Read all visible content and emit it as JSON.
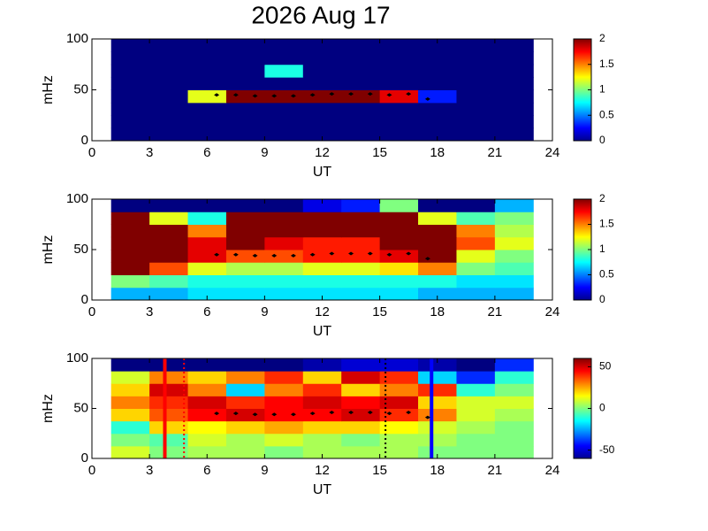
{
  "title": "2026 Aug 17",
  "chart_data": [
    {
      "type": "heatmap",
      "xlabel": "UT",
      "ylabel": "mHz",
      "xlim": [
        0,
        24
      ],
      "xticks": [
        0,
        3,
        6,
        9,
        12,
        15,
        18,
        21,
        24
      ],
      "ylim": [
        0,
        100
      ],
      "yticks": [
        0,
        50,
        100
      ],
      "x_edges": [
        1,
        3,
        5,
        7,
        9,
        11,
        13,
        15,
        17,
        19,
        21,
        23
      ],
      "y_edges": [
        0,
        12.5,
        25,
        37.5,
        50,
        62.5,
        75,
        87.5,
        100
      ],
      "z": [
        [
          0,
          0,
          0,
          0,
          0,
          0,
          0,
          0,
          0,
          0,
          0
        ],
        [
          0,
          0,
          0,
          0,
          0,
          0,
          0,
          0,
          0,
          0,
          0
        ],
        [
          0,
          0,
          0,
          0,
          0,
          0,
          0,
          0,
          0,
          0,
          0
        ],
        [
          0,
          0,
          1.2,
          2,
          2,
          2,
          2,
          1.8,
          0.3,
          0,
          0
        ],
        [
          0,
          0,
          0,
          0,
          0,
          0,
          0,
          0,
          0,
          0,
          0
        ],
        [
          0,
          0,
          0,
          0,
          0.8,
          0,
          0,
          0,
          0,
          0,
          0
        ],
        [
          0,
          0,
          0,
          0,
          0,
          0,
          0,
          0,
          0,
          0,
          0
        ],
        [
          0,
          0,
          0,
          0,
          0,
          0,
          0,
          0,
          0,
          0,
          0
        ]
      ],
      "clim": [
        0,
        2
      ],
      "cticks": [
        0,
        0.5,
        1,
        1.5,
        2
      ],
      "trace": {
        "x": [
          6.5,
          7.5,
          8.5,
          9.5,
          10.5,
          11.5,
          12.5,
          13.5,
          14.5,
          15.5,
          16.5,
          17.5
        ],
        "y": [
          45,
          45,
          44,
          44,
          44,
          45,
          46,
          46,
          46,
          45,
          46,
          41
        ],
        "color": "#000000"
      }
    },
    {
      "type": "heatmap",
      "xlabel": "UT",
      "ylabel": "mHz",
      "xlim": [
        0,
        24
      ],
      "xticks": [
        0,
        3,
        6,
        9,
        12,
        15,
        18,
        21,
        24
      ],
      "ylim": [
        0,
        100
      ],
      "yticks": [
        0,
        50,
        100
      ],
      "x_edges": [
        1,
        3,
        5,
        7,
        9,
        11,
        13,
        15,
        17,
        19,
        21,
        23
      ],
      "y_edges": [
        0,
        12.5,
        25,
        37.5,
        50,
        62.5,
        75,
        87.5,
        100
      ],
      "z": [
        [
          0.6,
          0.6,
          0.7,
          0.7,
          0.7,
          0.7,
          0.7,
          0.7,
          0.6,
          0.6,
          0.6
        ],
        [
          1.0,
          0.9,
          0.8,
          0.8,
          0.8,
          0.8,
          0.8,
          0.8,
          0.8,
          0.7,
          0.7
        ],
        [
          2,
          1.6,
          1.2,
          1.1,
          1.1,
          1.2,
          1.2,
          1.3,
          1.5,
          1.0,
          0.9
        ],
        [
          2,
          2,
          1.8,
          1.6,
          1.6,
          1.7,
          1.7,
          1.8,
          2,
          1.2,
          1.0
        ],
        [
          2,
          2,
          1.8,
          2,
          1.8,
          1.7,
          1.7,
          2,
          2,
          1.6,
          1.2
        ],
        [
          2,
          2,
          1.5,
          2,
          2,
          2,
          2,
          2,
          2,
          1.5,
          1.1
        ],
        [
          2,
          1.2,
          0.8,
          2,
          2,
          2,
          2,
          2,
          1.2,
          0.9,
          1.0
        ],
        [
          0,
          0,
          0,
          0,
          0,
          0.2,
          0.3,
          1.0,
          0,
          0,
          0.6
        ]
      ],
      "clim": [
        0,
        2
      ],
      "cticks": [
        0,
        0.5,
        1,
        1.5,
        2
      ],
      "trace": {
        "x": [
          6.5,
          7.5,
          8.5,
          9.5,
          10.5,
          11.5,
          12.5,
          13.5,
          14.5,
          15.5,
          16.5,
          17.5
        ],
        "y": [
          45,
          45,
          44,
          44,
          44,
          45,
          46,
          46,
          46,
          45,
          46,
          41
        ],
        "color": "#000000"
      }
    },
    {
      "type": "heatmap",
      "xlabel": "UT",
      "ylabel": "mHz",
      "xlim": [
        0,
        24
      ],
      "xticks": [
        0,
        3,
        6,
        9,
        12,
        15,
        18,
        21,
        24
      ],
      "ylim": [
        0,
        100
      ],
      "yticks": [
        0,
        50,
        100
      ],
      "x_edges": [
        1,
        3,
        5,
        7,
        9,
        11,
        13,
        15,
        17,
        19,
        21,
        23
      ],
      "y_edges": [
        0,
        12.5,
        25,
        37.5,
        50,
        62.5,
        75,
        87.5,
        100
      ],
      "z": [
        [
          10,
          0,
          5,
          5,
          0,
          5,
          5,
          5,
          0,
          0,
          0
        ],
        [
          0,
          -5,
          10,
          5,
          10,
          5,
          0,
          5,
          5,
          0,
          0
        ],
        [
          -10,
          20,
          15,
          20,
          25,
          20,
          20,
          15,
          10,
          5,
          0
        ],
        [
          20,
          35,
          45,
          50,
          45,
          45,
          50,
          40,
          30,
          10,
          5
        ],
        [
          30,
          40,
          50,
          40,
          45,
          50,
          45,
          50,
          20,
          10,
          10
        ],
        [
          20,
          50,
          30,
          -20,
          30,
          40,
          20,
          30,
          40,
          -10,
          0
        ],
        [
          10,
          30,
          20,
          30,
          40,
          20,
          50,
          40,
          -20,
          -40,
          -10
        ],
        [
          -60,
          -60,
          -60,
          -60,
          -60,
          -55,
          -50,
          -50,
          -55,
          -60,
          -40
        ]
      ],
      "clim": [
        -60,
        60
      ],
      "cticks": [
        -50,
        0,
        50
      ],
      "trace": {
        "x": [
          6.5,
          7.5,
          8.5,
          9.5,
          10.5,
          11.5,
          12.5,
          13.5,
          14.5,
          15.5,
          16.5,
          17.5
        ],
        "y": [
          45,
          45,
          44,
          44,
          44,
          45,
          46,
          46,
          46,
          45,
          46,
          41
        ],
        "color": "#000000"
      },
      "markers": [
        {
          "x": 3.8,
          "color": "#ff0000",
          "style": "solid"
        },
        {
          "x": 4.8,
          "color": "#ff0000",
          "style": "dotted"
        },
        {
          "x": 15.3,
          "color": "#000000",
          "style": "dotted"
        },
        {
          "x": 17.7,
          "color": "#0000ff",
          "style": "solid"
        }
      ]
    }
  ]
}
